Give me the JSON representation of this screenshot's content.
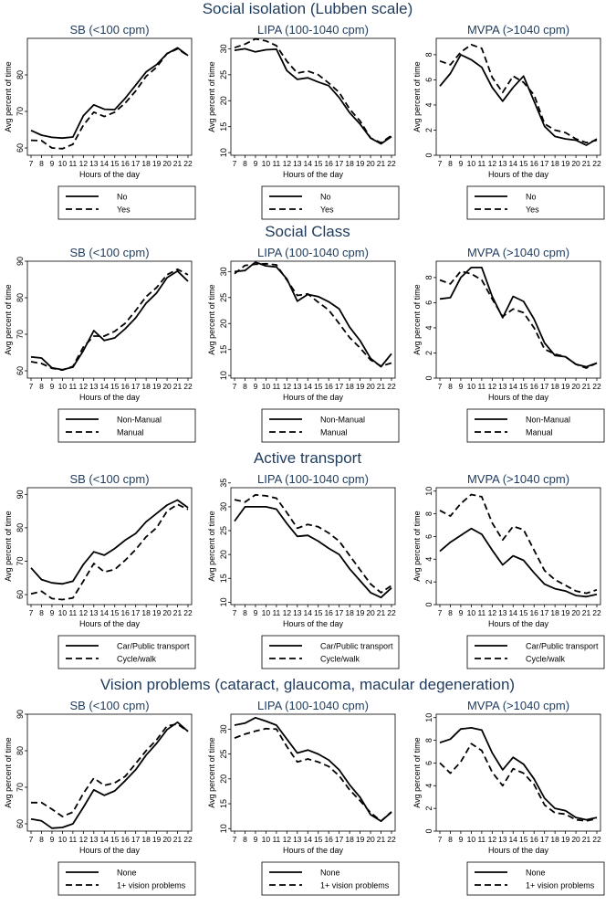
{
  "x_hours": [
    7,
    8,
    9,
    10,
    11,
    12,
    13,
    14,
    15,
    16,
    17,
    18,
    19,
    20,
    21,
    22
  ],
  "axis": {
    "ylabel": "Avg percent of time",
    "xlabel": "Hours of the day"
  },
  "panel_titles": [
    "SB (<100 cpm)",
    "LIPA (100-1040 cpm)",
    "MVPA (>1040 cpm)"
  ],
  "chart_data": [
    {
      "type": "line",
      "section": "Social isolation (Lubben scale)",
      "legend": [
        "No",
        "Yes"
      ],
      "panels": [
        {
          "title": "SB (<100 cpm)",
          "ylim": [
            58,
            90
          ],
          "yticks": [
            60,
            70,
            80
          ],
          "series": [
            {
              "name": "No",
              "values": [
                64.8,
                63.5,
                62.9,
                62.7,
                63.0,
                68.8,
                71.8,
                70.6,
                70.5,
                73.6,
                77.2,
                80.8,
                82.8,
                85.8,
                87.4,
                85.3
              ]
            },
            {
              "name": "Yes",
              "values": [
                62.1,
                62.0,
                60.0,
                59.8,
                61.0,
                66.2,
                69.8,
                68.6,
                69.8,
                72.3,
                75.6,
                79.6,
                82.1,
                85.9,
                87.1,
                85.3
              ]
            }
          ]
        },
        {
          "title": "LIPA (100-1040 cpm)",
          "ylim": [
            9.5,
            32
          ],
          "yticks": [
            10,
            15,
            20,
            25,
            30
          ],
          "series": [
            {
              "name": "No",
              "values": [
                29.7,
                30.0,
                29.4,
                29.8,
                29.9,
                25.8,
                24.1,
                24.4,
                23.6,
                22.9,
                20.6,
                17.7,
                15.5,
                12.8,
                11.7,
                13.1
              ]
            },
            {
              "name": "Yes",
              "values": [
                30.2,
                30.9,
                31.9,
                31.5,
                30.6,
                27.6,
                25.3,
                25.7,
                25.0,
                23.4,
                21.6,
                18.4,
                16.1,
                12.8,
                11.9,
                13.3
              ]
            }
          ]
        },
        {
          "title": "MVPA (>1040 cpm)",
          "ylim": [
            0,
            9.3
          ],
          "yticks": [
            0,
            2,
            4,
            6,
            8
          ],
          "series": [
            {
              "name": "No",
              "values": [
                5.5,
                6.5,
                8.0,
                7.6,
                7.0,
                5.4,
                4.3,
                5.4,
                6.3,
                4.3,
                2.3,
                1.5,
                1.3,
                1.2,
                0.8,
                1.3
              ]
            },
            {
              "name": "Yes",
              "values": [
                7.5,
                7.2,
                8.2,
                8.8,
                8.5,
                6.2,
                5.0,
                6.3,
                5.8,
                4.8,
                2.5,
                2.0,
                1.8,
                1.3,
                1.0,
                1.2
              ]
            }
          ]
        }
      ]
    },
    {
      "type": "line",
      "section": "Social Class",
      "legend": [
        "Non-Manual",
        "Manual"
      ],
      "panels": [
        {
          "title": "SB (<100 cpm)",
          "ylim": [
            58,
            90
          ],
          "yticks": [
            60,
            70,
            80,
            90
          ],
          "series": [
            {
              "name": "Non-Manual",
              "values": [
                63.8,
                63.5,
                60.8,
                60.3,
                61.0,
                65.5,
                71.0,
                68.3,
                69.0,
                71.5,
                74.5,
                78.5,
                81.3,
                85.5,
                87.3,
                84.5
              ]
            },
            {
              "name": "Manual",
              "values": [
                62.5,
                62.0,
                60.7,
                60.2,
                61.2,
                66.5,
                69.5,
                69.5,
                70.8,
                73.0,
                76.5,
                80.3,
                82.8,
                86.3,
                87.8,
                86.3
              ]
            }
          ]
        },
        {
          "title": "LIPA (100-1040 cpm)",
          "ylim": [
            9.5,
            32
          ],
          "yticks": [
            10,
            15,
            20,
            25,
            30
          ],
          "series": [
            {
              "name": "Non-Manual",
              "values": [
                30.0,
                30.2,
                31.8,
                31.1,
                30.9,
                28.6,
                24.3,
                25.6,
                25.2,
                24.2,
                22.8,
                19.3,
                16.7,
                13.3,
                11.7,
                14.2
              ]
            },
            {
              "name": "Manual",
              "values": [
                29.6,
                31.2,
                31.4,
                31.5,
                31.3,
                28.4,
                25.4,
                25.7,
                24.1,
                22.6,
                20.0,
                17.3,
                15.3,
                13.0,
                11.8,
                12.4
              ]
            }
          ]
        },
        {
          "title": "MVPA (>1040 cpm)",
          "ylim": [
            0,
            9.3
          ],
          "yticks": [
            0,
            2,
            4,
            6,
            8
          ],
          "series": [
            {
              "name": "Non-Manual",
              "values": [
                6.3,
                6.4,
                8.0,
                8.8,
                8.8,
                6.5,
                4.8,
                6.5,
                6.1,
                4.7,
                2.8,
                1.8,
                1.7,
                1.1,
                0.9,
                1.2
              ]
            },
            {
              "name": "Manual",
              "values": [
                7.8,
                7.5,
                8.5,
                8.3,
                7.8,
                6.3,
                4.9,
                5.5,
                5.2,
                4.0,
                2.3,
                1.9,
                1.7,
                1.1,
                0.8,
                1.2
              ]
            }
          ]
        }
      ]
    },
    {
      "type": "line",
      "section": "Active transport",
      "legend": [
        "Car/Public transport",
        "Cycle/walk"
      ],
      "panels": [
        {
          "title": "SB (<100 cpm)",
          "ylim": [
            57,
            92
          ],
          "yticks": [
            60,
            70,
            80,
            90
          ],
          "series": [
            {
              "name": "Car/Public transport",
              "values": [
                68.0,
                64.5,
                63.5,
                63.2,
                64.0,
                69.0,
                72.8,
                71.8,
                73.8,
                76.3,
                78.3,
                81.8,
                84.3,
                86.8,
                88.3,
                86.0
              ]
            },
            {
              "name": "Cycle/walk",
              "values": [
                60.2,
                61.0,
                58.8,
                58.5,
                59.0,
                64.0,
                69.3,
                66.8,
                67.5,
                70.3,
                73.5,
                77.3,
                80.0,
                85.0,
                87.0,
                85.5
              ]
            }
          ]
        },
        {
          "title": "LIPA (100-1040 cpm)",
          "ylim": [
            9.5,
            34
          ],
          "yticks": [
            10,
            15,
            20,
            25,
            30,
            35
          ],
          "series": [
            {
              "name": "Car/Public transport",
              "values": [
                27.0,
                30.0,
                30.0,
                30.0,
                29.5,
                26.5,
                23.8,
                24.0,
                22.8,
                21.3,
                20.0,
                17.0,
                14.5,
                12.0,
                11.0,
                13.0
              ]
            },
            {
              "name": "Cycle/walk",
              "values": [
                31.5,
                31.0,
                32.5,
                32.3,
                31.8,
                28.8,
                25.5,
                26.3,
                25.8,
                24.5,
                22.8,
                19.8,
                16.8,
                13.8,
                12.0,
                13.5
              ]
            }
          ]
        },
        {
          "title": "MVPA (>1040 cpm)",
          "ylim": [
            0,
            10.3
          ],
          "yticks": [
            0,
            2,
            4,
            6,
            8,
            10
          ],
          "series": [
            {
              "name": "Car/Public transport",
              "values": [
                4.7,
                5.5,
                6.1,
                6.7,
                6.2,
                4.8,
                3.5,
                4.3,
                3.9,
                2.8,
                1.8,
                1.4,
                1.2,
                0.8,
                0.7,
                0.9
              ]
            },
            {
              "name": "Cycle/walk",
              "values": [
                8.3,
                7.8,
                8.9,
                9.7,
                9.5,
                7.2,
                5.7,
                6.9,
                6.6,
                4.8,
                3.0,
                2.2,
                1.7,
                1.2,
                1.0,
                1.3
              ]
            }
          ]
        }
      ]
    },
    {
      "type": "line",
      "section": "Vision problems (cataract, glaucoma, macular degeneration)",
      "legend": [
        "None",
        "1+ vision problems"
      ],
      "panels": [
        {
          "title": "SB (<100 cpm)",
          "ylim": [
            58,
            90
          ],
          "yticks": [
            60,
            70,
            80,
            90
          ],
          "series": [
            {
              "name": "None",
              "values": [
                61.3,
                60.8,
                58.8,
                59.0,
                60.0,
                64.5,
                69.3,
                67.8,
                69.0,
                71.8,
                74.8,
                78.8,
                82.0,
                85.8,
                87.8,
                85.3
              ]
            },
            {
              "name": "1+ vision problems",
              "values": [
                65.8,
                65.8,
                64.0,
                62.0,
                63.2,
                68.3,
                72.5,
                70.5,
                71.2,
                73.0,
                76.5,
                80.0,
                83.0,
                86.8,
                87.3,
                85.3
              ]
            }
          ]
        },
        {
          "title": "LIPA (100-1040 cpm)",
          "ylim": [
            9.5,
            33
          ],
          "yticks": [
            10,
            15,
            20,
            25,
            30
          ],
          "series": [
            {
              "name": "None",
              "values": [
                30.8,
                31.2,
                32.3,
                31.6,
                30.8,
                28.0,
                25.2,
                25.8,
                25.0,
                23.8,
                21.8,
                18.8,
                16.3,
                12.8,
                11.5,
                13.3
              ]
            },
            {
              "name": "1+ vision problems",
              "values": [
                28.2,
                29.0,
                29.6,
                30.1,
                30.0,
                26.5,
                23.4,
                24.0,
                23.4,
                22.5,
                20.6,
                17.8,
                15.6,
                13.2,
                11.5,
                13.4
              ]
            }
          ]
        },
        {
          "title": "MVPA (>1040 cpm)",
          "ylim": [
            0,
            10.3
          ],
          "yticks": [
            0,
            2,
            4,
            6,
            8,
            10
          ],
          "series": [
            {
              "name": "None",
              "values": [
                7.8,
                8.1,
                9.0,
                9.1,
                8.9,
                6.9,
                5.4,
                6.5,
                5.9,
                4.6,
                2.9,
                2.0,
                1.8,
                1.2,
                1.0,
                1.2
              ]
            },
            {
              "name": "1+ vision problems",
              "values": [
                6.0,
                5.1,
                6.1,
                7.7,
                7.1,
                5.2,
                4.0,
                5.5,
                5.1,
                4.1,
                2.3,
                1.6,
                1.5,
                1.0,
                0.9,
                1.1
              ]
            }
          ]
        }
      ]
    }
  ]
}
